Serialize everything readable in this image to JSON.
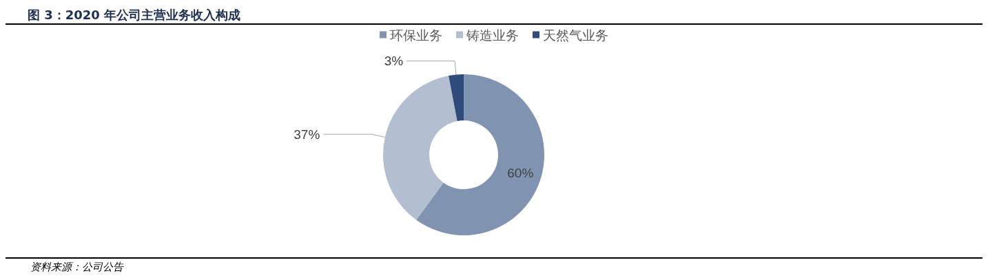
{
  "chart_data": {
    "type": "donut",
    "title": "图 3：2020 年公司主营业务收入构成",
    "categories": [
      "环保业务",
      "铸造业务",
      "天然气业务"
    ],
    "values": [
      60,
      37,
      3
    ],
    "colors": [
      "#8093b0",
      "#b3bfd1",
      "#2f4b7c"
    ],
    "value_labels": [
      "60%",
      "37%",
      "3%"
    ],
    "legend": "top",
    "annotations": [
      "资料来源：公司公告"
    ]
  }
}
